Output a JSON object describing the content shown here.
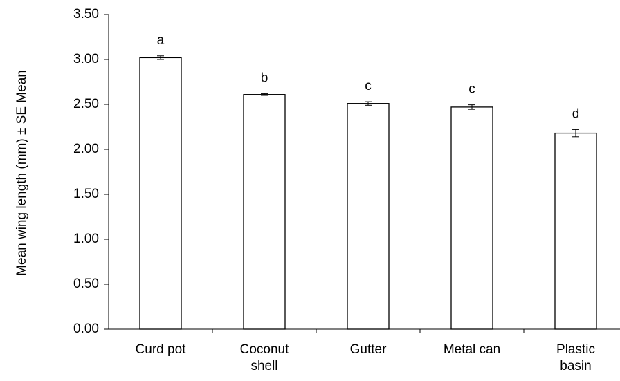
{
  "chart_data": {
    "type": "bar",
    "ylabel": "Mean wing length (mm) ± SE Mean",
    "categories": [
      "Curd pot",
      "Coconut shell",
      "Gutter",
      "Metal can",
      "Plastic basin"
    ],
    "values": [
      3.02,
      2.61,
      2.51,
      2.47,
      2.18
    ],
    "errors": [
      0.02,
      0.01,
      0.02,
      0.025,
      0.04
    ],
    "annotations": [
      "a",
      "b",
      "c",
      "c",
      "d"
    ],
    "color": "#ffffff",
    "ylim": [
      0,
      3.5
    ],
    "yticks": [
      {
        "value": 0,
        "label": "0.00"
      },
      {
        "value": 0.5,
        "label": "0.50"
      },
      {
        "value": 1,
        "label": "1.00"
      },
      {
        "value": 1.5,
        "label": "1.50"
      },
      {
        "value": 2,
        "label": "2.00"
      },
      {
        "value": 2.5,
        "label": "2.50"
      },
      {
        "value": 3,
        "label": "3.00"
      },
      {
        "value": 3.5,
        "label": "3.50"
      }
    ],
    "grid": false
  }
}
